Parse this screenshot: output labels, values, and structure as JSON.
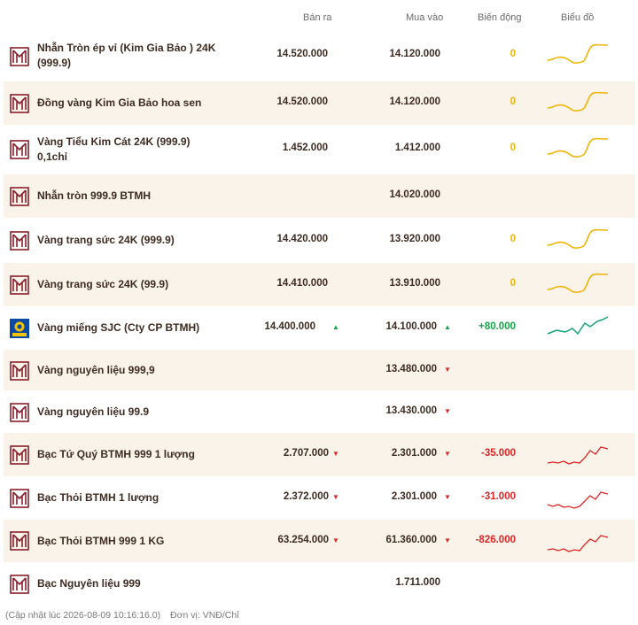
{
  "header": {
    "sell": "Bán ra",
    "buy": "Mua vào",
    "change": "Biến động",
    "chart": "Biểu đồ"
  },
  "colors": {
    "brand": "#8b1e2b",
    "row_alt": "#f9f3ea",
    "zero": "#f0b400",
    "up": "#16a34a",
    "down": "#e02424"
  },
  "rows": [
    {
      "name1": "Nhẫn Tròn ép vỉ (Kim Gia Bảo ) 24K",
      "name2": "(999.9)",
      "sell": "14.520.000",
      "buy": "14.120.000",
      "change": "0",
      "logo": "btmh-logo"
    },
    {
      "name1": "Đồng vàng Kim Gia Bảo hoa sen",
      "name2": "",
      "sell": "14.520.000",
      "buy": "14.120.000",
      "change": "0",
      "logo": "btmh-logo"
    },
    {
      "name1": "Vàng Tiểu Kim Cát 24K (999.9)",
      "name2": "0,1chỉ",
      "sell": "1.452.000",
      "buy": "1.412.000",
      "change": "0",
      "logo": "btmh-logo"
    },
    {
      "name1": "Nhẫn tròn 999.9 BTMH",
      "name2": "",
      "sell": "",
      "buy": "14.020.000",
      "change": "",
      "logo": "btmh-logo"
    },
    {
      "name1": "Vàng trang sức 24K (999.9)",
      "name2": "",
      "sell": "14.420.000",
      "buy": "13.920.000",
      "change": "0",
      "logo": "btmh-logo"
    },
    {
      "name1": "Vàng trang sức 24K (99.9)",
      "name2": "",
      "sell": "14.410.000",
      "buy": "13.910.000",
      "change": "0",
      "logo": "btmh-logo"
    },
    {
      "name1": "Vàng miếng SJC (Cty CP BTMH)",
      "name2": "",
      "sell": "14.400.000",
      "buy": "14.100.000",
      "change": "+80.000",
      "logo": "sjc-logo"
    },
    {
      "name1": "Vàng nguyên liệu 999,9",
      "name2": "",
      "sell": "",
      "buy": "13.480.000",
      "change": "",
      "logo": "btmh-logo"
    },
    {
      "name1": "Vàng nguyên liệu 99.9",
      "name2": "",
      "sell": "",
      "buy": "13.430.000",
      "change": "",
      "logo": "btmh-logo"
    },
    {
      "name1": "Bạc Tứ Quý BTMH 999 1 lượng",
      "name2": "",
      "sell": "2.707.000",
      "buy": "2.301.000",
      "change": "-35.000",
      "logo": "btmh-logo"
    },
    {
      "name1": "Bạc Thỏi BTMH 1 lượng",
      "name2": "",
      "sell": "2.372.000",
      "buy": "2.301.000",
      "change": "-31.000",
      "logo": "btmh-logo"
    },
    {
      "name1": "Bạc Thỏi BTMH 999 1 KG",
      "name2": "",
      "sell": "63.254.000",
      "buy": "61.360.000",
      "change": "-826.000",
      "logo": "btmh-logo"
    },
    {
      "name1": "Bạc Nguyên liệu 999",
      "name2": "",
      "sell": "",
      "buy": "1.711.000",
      "change": "",
      "logo": "btmh-logo"
    }
  ],
  "footer": {
    "updated": "(Cập nhật lúc 2026-08-09 10:16:16.0)",
    "unit": "Đơn vị: VNĐ/Chỉ"
  }
}
